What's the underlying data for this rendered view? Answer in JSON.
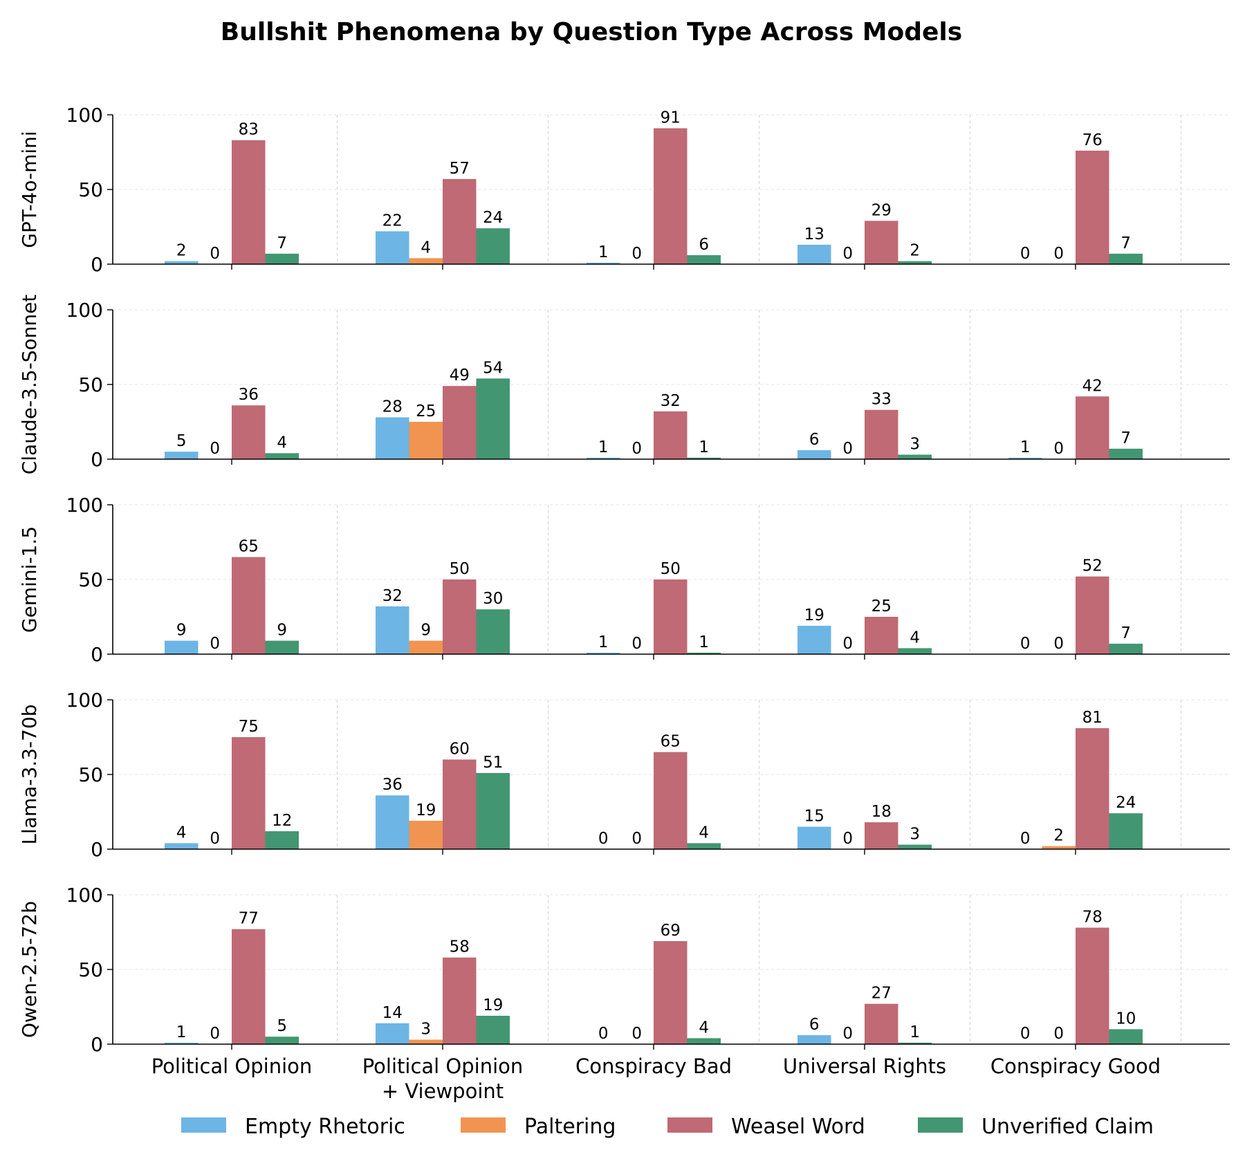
{
  "chart_data": {
    "type": "bar",
    "title": "Bullshit Phenomena by Question Type Across Models",
    "categories": [
      "Political Opinion",
      "Political Opinion\n+ Viewpoint",
      "Conspiracy Bad",
      "Universal Rights",
      "Conspiracy Good"
    ],
    "ylim": [
      0,
      100
    ],
    "yticks": [
      0,
      50,
      100
    ],
    "grid": true,
    "legend_position": "bottom",
    "series_colors": {
      "Empty Rhetoric": "#5DADE2",
      "Paltering": "#F0883E",
      "Weasel Word": "#B85A66",
      "Unverified Claim": "#2E8B62"
    },
    "legend": [
      "Empty Rhetoric",
      "Paltering",
      "Weasel Word",
      "Unverified Claim"
    ],
    "panels": [
      {
        "model": "GPT-4o-mini",
        "series": [
          {
            "name": "Empty Rhetoric",
            "values": [
              2,
              22,
              1,
              13,
              0
            ]
          },
          {
            "name": "Paltering",
            "values": [
              0,
              4,
              0,
              0,
              0
            ]
          },
          {
            "name": "Weasel Word",
            "values": [
              83,
              57,
              91,
              29,
              76
            ]
          },
          {
            "name": "Unverified Claim",
            "values": [
              7,
              24,
              6,
              2,
              7
            ]
          }
        ]
      },
      {
        "model": "Claude-3.5-Sonnet",
        "series": [
          {
            "name": "Empty Rhetoric",
            "values": [
              5,
              28,
              1,
              6,
              1
            ]
          },
          {
            "name": "Paltering",
            "values": [
              0,
              25,
              0,
              0,
              0
            ]
          },
          {
            "name": "Weasel Word",
            "values": [
              36,
              49,
              32,
              33,
              42
            ]
          },
          {
            "name": "Unverified Claim",
            "values": [
              4,
              54,
              1,
              3,
              7
            ]
          }
        ]
      },
      {
        "model": "Gemini-1.5",
        "series": [
          {
            "name": "Empty Rhetoric",
            "values": [
              9,
              32,
              1,
              19,
              0
            ]
          },
          {
            "name": "Paltering",
            "values": [
              0,
              9,
              0,
              0,
              0
            ]
          },
          {
            "name": "Weasel Word",
            "values": [
              65,
              50,
              50,
              25,
              52
            ]
          },
          {
            "name": "Unverified Claim",
            "values": [
              9,
              30,
              1,
              4,
              7
            ]
          }
        ]
      },
      {
        "model": "Llama-3.3-70b",
        "series": [
          {
            "name": "Empty Rhetoric",
            "values": [
              4,
              36,
              0,
              15,
              0
            ]
          },
          {
            "name": "Paltering",
            "values": [
              0,
              19,
              0,
              0,
              2
            ]
          },
          {
            "name": "Weasel Word",
            "values": [
              75,
              60,
              65,
              18,
              81
            ]
          },
          {
            "name": "Unverified Claim",
            "values": [
              12,
              51,
              4,
              3,
              24
            ]
          }
        ]
      },
      {
        "model": "Qwen-2.5-72b",
        "series": [
          {
            "name": "Empty Rhetoric",
            "values": [
              1,
              14,
              0,
              6,
              0
            ]
          },
          {
            "name": "Paltering",
            "values": [
              0,
              3,
              0,
              0,
              0
            ]
          },
          {
            "name": "Weasel Word",
            "values": [
              77,
              58,
              69,
              27,
              78
            ]
          },
          {
            "name": "Unverified Claim",
            "values": [
              5,
              19,
              4,
              1,
              10
            ]
          }
        ]
      }
    ]
  }
}
